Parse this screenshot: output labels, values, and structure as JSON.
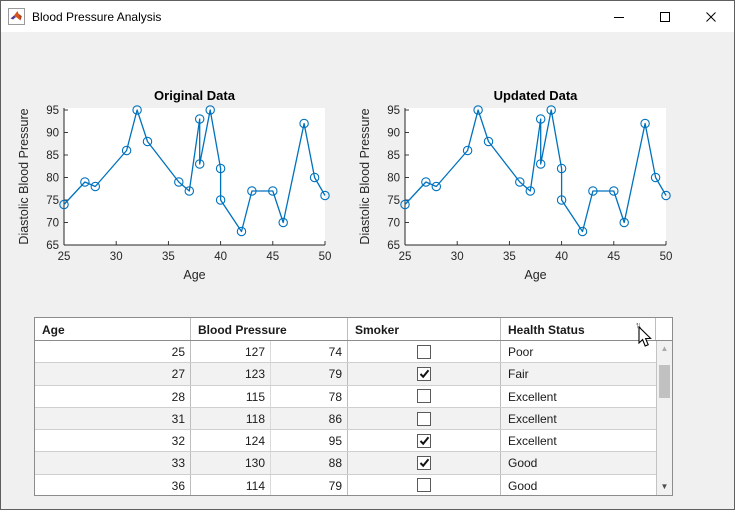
{
  "window": {
    "title": "Blood Pressure Analysis",
    "controls": {
      "minimize": "minimize",
      "maximize": "maximize",
      "close": "close"
    }
  },
  "colors": {
    "accent_blue": "#0072BD",
    "window_bg": "#f0f0f0",
    "titlebar_bg": "#ffffff",
    "row_stripe": "#f2f2f2"
  },
  "chart_data": [
    {
      "type": "line",
      "title": "Original Data",
      "xlabel": "Age",
      "ylabel": "Diastolic Blood Pressure",
      "x": [
        25,
        27,
        28,
        31,
        32,
        33,
        36,
        37,
        38,
        38,
        39,
        40,
        40,
        42,
        43,
        45,
        46,
        48,
        49,
        50
      ],
      "y": [
        74,
        79,
        78,
        86,
        95,
        88,
        79,
        77,
        93,
        83,
        95,
        82,
        75,
        68,
        77,
        77,
        70,
        92,
        80,
        76
      ],
      "xlim": [
        25,
        50
      ],
      "ylim": [
        65,
        95
      ],
      "xticks": [
        25,
        30,
        35,
        40,
        45,
        50
      ],
      "yticks": [
        65,
        70,
        75,
        80,
        85,
        90,
        95
      ],
      "grid": false,
      "legend": null,
      "line_color": "#0072BD",
      "marker": "circle"
    },
    {
      "type": "line",
      "title": "Updated Data",
      "xlabel": "Age",
      "ylabel": "Diastolic Blood Pressure",
      "x": [
        25,
        27,
        28,
        31,
        32,
        33,
        36,
        37,
        38,
        38,
        39,
        40,
        40,
        42,
        43,
        45,
        46,
        48,
        49,
        50
      ],
      "y": [
        74,
        79,
        78,
        86,
        95,
        88,
        79,
        77,
        93,
        83,
        95,
        82,
        75,
        68,
        77,
        77,
        70,
        92,
        80,
        76
      ],
      "xlim": [
        25,
        50
      ],
      "ylim": [
        65,
        95
      ],
      "xticks": [
        25,
        30,
        35,
        40,
        45,
        50
      ],
      "yticks": [
        65,
        70,
        75,
        80,
        85,
        90,
        95
      ],
      "grid": false,
      "legend": null,
      "line_color": "#0072BD",
      "marker": "circle"
    }
  ],
  "table": {
    "columns": [
      {
        "label": "Age"
      },
      {
        "label": "Blood Pressure"
      },
      {
        "label": "Smoker"
      },
      {
        "label": "Health Status",
        "sort_icon": "↑↓"
      }
    ],
    "rows": [
      {
        "age": 25,
        "systolic": 127,
        "diastolic": 74,
        "smoker": false,
        "health_status": "Poor"
      },
      {
        "age": 27,
        "systolic": 123,
        "diastolic": 79,
        "smoker": true,
        "health_status": "Fair"
      },
      {
        "age": 28,
        "systolic": 115,
        "diastolic": 78,
        "smoker": false,
        "health_status": "Excellent"
      },
      {
        "age": 31,
        "systolic": 118,
        "diastolic": 86,
        "smoker": false,
        "health_status": "Excellent"
      },
      {
        "age": 32,
        "systolic": 124,
        "diastolic": 95,
        "smoker": true,
        "health_status": "Excellent"
      },
      {
        "age": 33,
        "systolic": 130,
        "diastolic": 88,
        "smoker": true,
        "health_status": "Good"
      },
      {
        "age": 36,
        "systolic": 114,
        "diastolic": 79,
        "smoker": false,
        "health_status": "Good"
      }
    ]
  }
}
